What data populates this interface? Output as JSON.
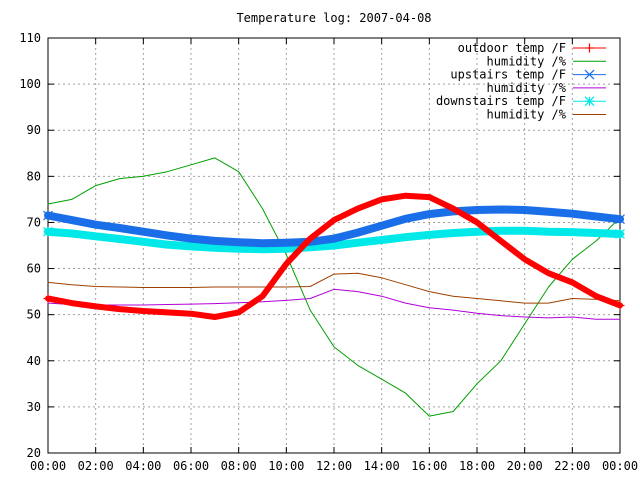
{
  "chart_data": {
    "type": "line",
    "title": "Temperature log: 2007-04-08",
    "xlabel": "",
    "ylabel": "",
    "xlim": [
      "00:00",
      "24:00"
    ],
    "ylim": [
      20,
      110
    ],
    "x_ticks": [
      "00:00",
      "02:00",
      "04:00",
      "06:00",
      "08:00",
      "10:00",
      "12:00",
      "14:00",
      "16:00",
      "18:00",
      "20:00",
      "22:00",
      "00:00"
    ],
    "y_ticks": [
      "20",
      "30",
      "40",
      "50",
      "60",
      "70",
      "80",
      "90",
      "100",
      "110"
    ],
    "grid": true,
    "legend_position": "top-right",
    "x": [
      "00:00",
      "01:00",
      "02:00",
      "03:00",
      "04:00",
      "05:00",
      "06:00",
      "07:00",
      "08:00",
      "09:00",
      "10:00",
      "11:00",
      "12:00",
      "13:00",
      "14:00",
      "15:00",
      "16:00",
      "17:00",
      "18:00",
      "19:00",
      "20:00",
      "21:00",
      "22:00",
      "23:00",
      "24:00"
    ],
    "series": [
      {
        "name": "outdoor temp /F",
        "color": "#ff0000",
        "marker": "plus",
        "values": [
          53.5,
          52.5,
          51.8,
          51.2,
          50.8,
          50.5,
          50.2,
          49.5,
          50.5,
          54,
          61,
          66.5,
          70.5,
          73,
          75,
          75.8,
          75.5,
          73,
          70,
          66,
          62,
          59,
          57,
          54,
          52
        ]
      },
      {
        "name": "humidity /%",
        "color": "#00a000",
        "marker": "none",
        "values": [
          74,
          75,
          78,
          79.5,
          80,
          81,
          82.5,
          84,
          81,
          73,
          63,
          51,
          43,
          39,
          36,
          33,
          28,
          29,
          35,
          40,
          48,
          56,
          62,
          66,
          71
        ]
      },
      {
        "name": "upstairs temp /F",
        "color": "#1a6ee8",
        "marker": "cross",
        "values": [
          71.5,
          70.5,
          69.5,
          68.8,
          68,
          67.2,
          66.5,
          66,
          65.7,
          65.5,
          65.6,
          65.8,
          66.5,
          67.8,
          69.3,
          70.8,
          71.8,
          72.4,
          72.7,
          72.8,
          72.7,
          72.3,
          71.9,
          71.3,
          70.7
        ]
      },
      {
        "name": "humidity /%",
        "color": "#b000d8",
        "marker": "none",
        "values": [
          52.5,
          52.2,
          52.1,
          52.1,
          52.1,
          52.2,
          52.3,
          52.4,
          52.6,
          52.8,
          53.1,
          53.5,
          55.5,
          55,
          54,
          52.5,
          51.5,
          51,
          50.3,
          49.8,
          49.5,
          49.3,
          49.5,
          49,
          49
        ]
      },
      {
        "name": "downstairs temp /F",
        "color": "#00e8e8",
        "marker": "star",
        "values": [
          68,
          67.6,
          67,
          66.4,
          65.8,
          65.2,
          64.8,
          64.5,
          64.3,
          64.2,
          64.3,
          64.6,
          65,
          65.6,
          66.2,
          66.8,
          67.3,
          67.7,
          68,
          68.2,
          68.2,
          68,
          67.9,
          67.7,
          67.5
        ]
      },
      {
        "name": "humidity /%",
        "color": "#a04000",
        "marker": "none",
        "values": [
          57,
          56.5,
          56.1,
          56,
          55.9,
          55.9,
          55.9,
          56,
          56,
          56,
          56,
          56.1,
          58.8,
          59,
          58,
          56.5,
          55,
          54,
          53.5,
          53,
          52.5,
          52.5,
          53.5,
          53.3,
          53
        ]
      }
    ]
  }
}
